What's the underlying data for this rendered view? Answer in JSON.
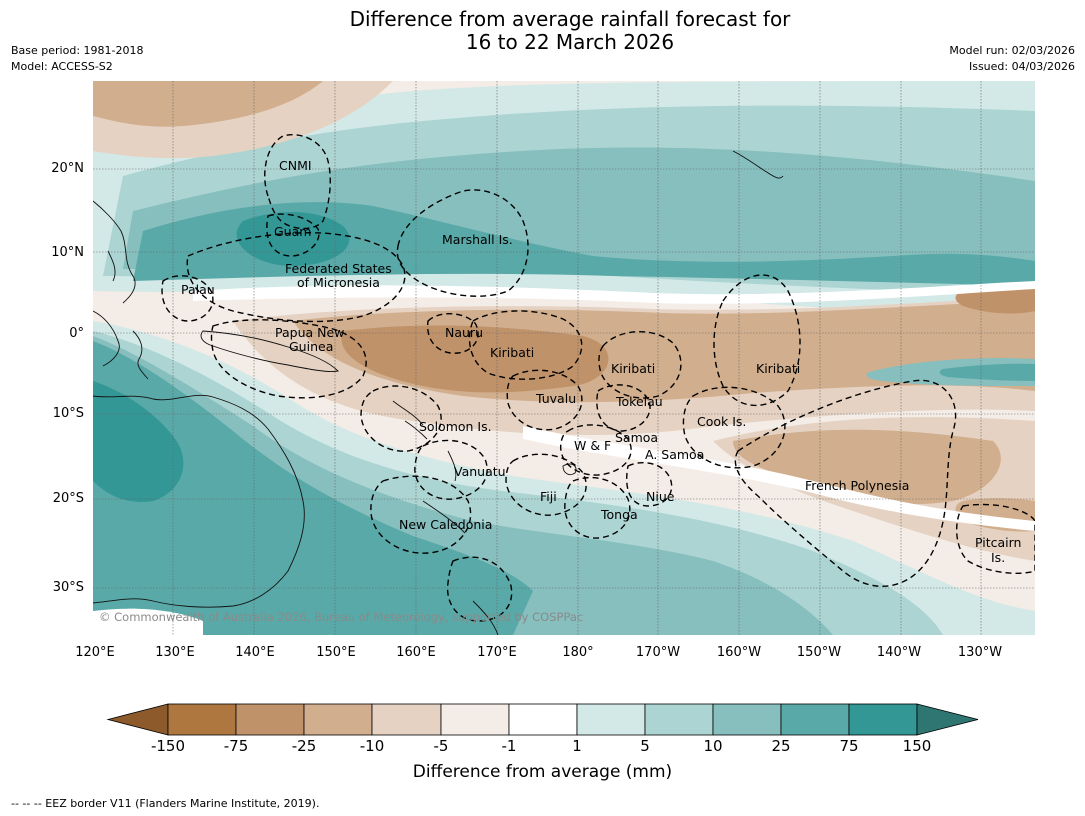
{
  "title": {
    "line1": "Difference from average rainfall forecast for",
    "line2": "16 to 22 March 2026"
  },
  "meta": {
    "base_period": "Base period: 1981-2018",
    "model": "Model: ACCESS-S2",
    "model_run": "Model run: 02/03/2026",
    "issued": "Issued: 04/03/2026"
  },
  "map": {
    "lat_ticks": [
      "20°N",
      "10°N",
      "0°",
      "10°S",
      "20°S",
      "30°S"
    ],
    "lon_ticks": [
      "120°E",
      "130°E",
      "140°E",
      "150°E",
      "160°E",
      "170°E",
      "180°",
      "170°W",
      "160°W",
      "150°W",
      "140°W",
      "130°W"
    ],
    "labels": {
      "cnmi": "CNMI",
      "guam": "Guam",
      "marshall": "Marshall Is.",
      "fsm_1": "Federated States",
      "fsm_2": "of Micronesia",
      "palau": "Palau",
      "png_1": "Papua New",
      "png_2": "Guinea",
      "nauru": "Nauru",
      "kiribati_w": "Kiribati",
      "kiribati_c": "Kiribati",
      "kiribati_e": "Kiribati",
      "tuvalu": "Tuvalu",
      "tokelau": "Tokelau",
      "cook": "Cook Is.",
      "solomon": "Solomon Is.",
      "wf": "W & F",
      "samoa": "Samoa",
      "asamoa": "A. Samoa",
      "vanuatu": "Vanuatu",
      "fiji": "Fiji",
      "niue": "Niue",
      "tonga": "Tonga",
      "new_caledonia": "New Caledonia",
      "french_polynesia": "French Polynesia",
      "pitcairn_1": "Pitcairn",
      "pitcairn_2": "Is."
    },
    "copyright": "© Commonwealth of Australia 2026, Bureau of Meteorology, supported by COSPPac",
    "colors": {
      "brown_150": "#8c5a2b",
      "brown_75": "#ad773f",
      "brown_25": "#c0926a",
      "brown_10": "#d1ae8d",
      "brown_5": "#e5d2c2",
      "brown_1": "#f4ece6",
      "neutral": "#ffffff",
      "teal_1": "#d3e9e7",
      "teal_5": "#acd4d2",
      "teal_10": "#86bfbe",
      "teal_25": "#59a9a8",
      "teal_75": "#329795",
      "teal_150": "#2f7672"
    }
  },
  "colorbar": {
    "ticks": [
      "-150",
      "-75",
      "-25",
      "-10",
      "-5",
      "-1",
      "1",
      "5",
      "10",
      "25",
      "75",
      "150"
    ],
    "title": "Difference from average (mm)"
  },
  "footnote": "--  --  -- EEZ border V11 (Flanders Marine Institute, 2019)."
}
